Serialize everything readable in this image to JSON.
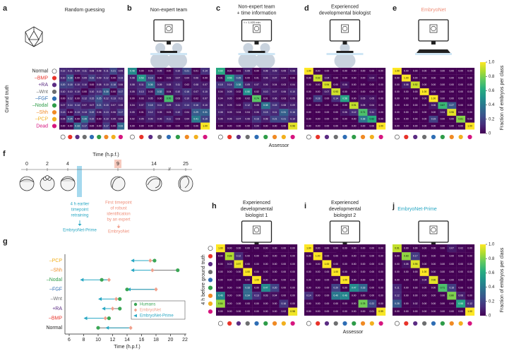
{
  "class_labels": [
    "Normal",
    "–BMP",
    "+RA",
    "–Wnt",
    "–FGF",
    "–Nodal",
    "–Shh",
    "–PCP",
    "Dead"
  ],
  "class_colors": [
    "#ffffff",
    "#e8332a",
    "#5b2c83",
    "#6d6e70",
    "#2e6db4",
    "#2e9c48",
    "#f08a24",
    "#f2b01e",
    "#d6157f"
  ],
  "top": {
    "y_label": "Ground truth",
    "x_label": "Assessor",
    "colorbar_label": "Fraction of embryos per class",
    "colorbar_ticks": [
      0,
      0.2,
      0.4,
      0.6,
      0.8,
      {
        "value": 1,
        "label": "1.0"
      }
    ],
    "panels": [
      {
        "letter": "a",
        "title": [
          "Random guessing"
        ],
        "matrix": [
          [
            "0.12",
            "0.11",
            "0.09",
            "0.11",
            "0.08",
            "0.08",
            "0.11",
            "0.21",
            "0.09"
          ],
          [
            "0.10",
            "0.28",
            "0.00",
            "0.09",
            "0.19",
            "0.09",
            "0.12",
            "0.00",
            "0.13"
          ],
          [
            "0.20",
            "0.18",
            "0.10",
            "0.10",
            "0.00",
            "0.08",
            "0.10",
            "0.18",
            "0.06"
          ],
          [
            "0.10",
            "0.10",
            "0.10",
            "0.00",
            "0.10",
            "0.13",
            "0.30",
            "0.00",
            "0.17"
          ],
          [
            "0.00",
            "0.12",
            "0.00",
            "0.12",
            "0.15",
            "0.25",
            "0.12",
            "0.13",
            "0.11"
          ],
          [
            "0.07",
            "0.14",
            "0.14",
            "0.07",
            "0.07",
            "0.21",
            "0.15",
            "0.07",
            "0.08"
          ],
          [
            "0.13",
            "0.00",
            "0.13",
            "0.13",
            "0.19",
            "0.06",
            "0.13",
            "0.06",
            "0.17"
          ],
          [
            "0.05",
            "0.25",
            "0.00",
            "0.35",
            "0.15",
            "0.00",
            "0.10",
            "0.05",
            "0.05"
          ],
          [
            "0.00",
            "0.00",
            "0.33",
            "0.17",
            "0.00",
            "0.00",
            "0.17",
            "0.00",
            "0.33"
          ]
        ]
      },
      {
        "letter": "b",
        "title": [
          "Non-expert team"
        ],
        "matrix": [
          [
            "0.48",
            "0.00",
            "0.01",
            "0.05",
            "0.00",
            "0.10",
            "0.21",
            "0.01",
            "0.14"
          ],
          [
            "0.08",
            "0.53",
            "0.19",
            "0.00",
            "0.03",
            "0.07",
            "0.04",
            "0.06",
            "0.00"
          ],
          [
            "0.08",
            "0.11",
            "0.36",
            "0.09",
            "0.08",
            "0.11",
            "0.02",
            "0.08",
            "0.07"
          ],
          [
            "0.05",
            "0.13",
            "0.03",
            "0.32",
            "0.04",
            "0.10",
            "0.16",
            "0.07",
            "0.10"
          ],
          [
            "0.00",
            "0.03",
            "0.05",
            "0.00",
            "0.70",
            "0.03",
            "0.10",
            "0.02",
            "0.07"
          ],
          [
            "0.04",
            "0.07",
            "0.18",
            "0.11",
            "0.09",
            "0.11",
            "0.14",
            "0.16",
            "0.10"
          ],
          [
            "0.05",
            "0.01",
            "0.12",
            "0.05",
            "0.03",
            "0.10",
            "0.04",
            "0.29",
            "0.31"
          ],
          [
            "0.02",
            "0.05",
            "0.09",
            "0.06",
            "0.11",
            "0.03",
            "0.04",
            "0.41",
            "0.19"
          ],
          [
            "0.00",
            "0.00",
            "0.00",
            "0.00",
            "0.00",
            "0.00",
            "0.00",
            "0.00",
            "1.00"
          ]
        ]
      },
      {
        "letter": "c",
        "title": [
          "Non-expert team",
          "+ time information"
        ],
        "screen_text": "t = 1,420 min",
        "matrix": [
          [
            "0.60",
            "0.00",
            "0.01",
            "0.09",
            "0.00",
            "0.08",
            "0.09",
            "0.05",
            "0.08"
          ],
          [
            "0.01",
            "0.56",
            "0.25",
            "0.00",
            "0.01",
            "0.06",
            "0.07",
            "0.04",
            "0.00"
          ],
          [
            "0.15",
            "0.14",
            "0.38",
            "0.09",
            "0.07",
            "0.06",
            "0.04",
            "0.03",
            "0.04"
          ],
          [
            "0.04",
            "0.09",
            "0.02",
            "0.50",
            "0.02",
            "0.10",
            "0.07",
            "0.06",
            "0.10"
          ],
          [
            "0.04",
            "0.05",
            "0.00",
            "0.02",
            "0.74",
            "0.01",
            "0.06",
            "0.03",
            "0.05"
          ],
          [
            "0.06",
            "0.05",
            "0.02",
            "0.12",
            "0.05",
            "0.38",
            "0.15",
            "0.08",
            "0.09"
          ],
          [
            "0.08",
            "0.05",
            "0.04",
            "0.04",
            "0.06",
            "0.15",
            "0.11",
            "0.31",
            "0.16"
          ],
          [
            "0.05",
            "0.06",
            "0.07",
            "0.06",
            "0.16",
            "0.08",
            "0.21",
            "0.21",
            "0.10"
          ],
          [
            "0.00",
            "0.00",
            "0.00",
            "0.00",
            "0.04",
            "0.00",
            "0.00",
            "0.00",
            "0.96"
          ]
        ]
      },
      {
        "letter": "d",
        "title": [
          "Experienced",
          "developmental biologist"
        ],
        "matrix": [
          [
            "1.00",
            "0.00",
            "0.00",
            "0.00",
            "0.00",
            "0.00",
            "0.00",
            "0.00",
            "0.00"
          ],
          [
            "0.00",
            "0.92",
            "0.04",
            "0.00",
            "0.00",
            "0.00",
            "0.00",
            "0.04",
            "0.00"
          ],
          [
            "0.00",
            "0.00",
            "0.94",
            "0.00",
            "0.06",
            "0.00",
            "0.00",
            "0.00",
            "0.00"
          ],
          [
            "0.00",
            "0.00",
            "0.07",
            "0.93",
            "0.00",
            "0.00",
            "0.00",
            "0.00",
            "0.00"
          ],
          [
            "0.00",
            "0.18",
            "0.00",
            "0.14",
            "0.58",
            "0.00",
            "0.05",
            "0.05",
            "0.00"
          ],
          [
            "0.00",
            "0.00",
            "0.00",
            "0.00",
            "0.00",
            "0.91",
            "0.05",
            "0.04",
            "0.00"
          ],
          [
            "0.00",
            "0.00",
            "0.00",
            "0.00",
            "0.06",
            "0.12",
            "0.71",
            "0.11",
            "0.00"
          ],
          [
            "0.00",
            "0.00",
            "0.00",
            "0.00",
            "0.00",
            "0.00",
            "0.38",
            "0.62",
            "0.00"
          ],
          [
            "0.00",
            "0.00",
            "0.00",
            "0.00",
            "0.00",
            "0.00",
            "0.00",
            "0.00",
            "1.00"
          ]
        ]
      },
      {
        "letter": "e",
        "title": [
          "EmbryoNet"
        ],
        "title_color": "#ef8f7a",
        "matrix": [
          [
            "1.00",
            "0.00",
            "0.00",
            "0.00",
            "0.00",
            "0.00",
            "0.00",
            "0.00",
            "0.00"
          ],
          [
            "0.00",
            "1.00",
            "0.00",
            "0.00",
            "0.00",
            "0.00",
            "0.00",
            "0.00",
            "0.00"
          ],
          [
            "0.00",
            "0.08",
            "0.92",
            "0.00",
            "0.00",
            "0.00",
            "0.00",
            "0.00",
            "0.00"
          ],
          [
            "0.00",
            "0.00",
            "0.00",
            "1.00",
            "0.00",
            "0.00",
            "0.00",
            "0.00",
            "0.00"
          ],
          [
            "0.00",
            "0.00",
            "0.00",
            "0.00",
            "1.00",
            "0.00",
            "0.00",
            "0.00",
            "0.00"
          ],
          [
            "0.00",
            "0.00",
            "0.00",
            "0.00",
            "0.06",
            "0.67",
            "0.27",
            "0.00",
            "0.00"
          ],
          [
            "0.00",
            "0.00",
            "0.00",
            "0.00",
            "0.00",
            "0.04",
            "0.96",
            "0.00",
            "0.00"
          ],
          [
            "0.00",
            "0.00",
            "0.00",
            "0.00",
            "0.19",
            "0.00",
            "0.00",
            "0.81",
            "0.00"
          ],
          [
            "0.00",
            "0.00",
            "0.00",
            "0.00",
            "0.00",
            "0.00",
            "0.00",
            "0.00",
            "1.00"
          ]
        ]
      }
    ]
  },
  "timeline": {
    "letter": "f",
    "axis_label": "Time (h.p.f.)",
    "ticks": [
      0,
      2,
      4,
      9,
      14,
      25
    ],
    "blue_note": [
      "4 h earlier",
      "timepoint",
      "retraining"
    ],
    "blue_model": "EmbryoNet-Prime",
    "blue_color": "#2aa8c4",
    "salmon_note": [
      "First timepoint",
      "of robust",
      "identification",
      "by an expert"
    ],
    "salmon_model": "EmbryoNet",
    "salmon_color": "#ef8f7a"
  },
  "dumbbell": {
    "letter": "g",
    "categories": [
      "–PCP",
      "–Shh",
      "–Nodal",
      "–FGF",
      "–Wnt",
      "+RA",
      "–BMP",
      "Normal"
    ],
    "category_colors": [
      "#f2b01e",
      "#f08a24",
      "#2e9c48",
      "#2e6db4",
      "#6d6e70",
      "#5b2c83",
      "#e8332a",
      "#222222"
    ],
    "series": [
      {
        "name": "Humans",
        "color": "#3aa655",
        "values": [
          17.8,
          21,
          10.5,
          14,
          13,
          13,
          11.5,
          10
        ]
      },
      {
        "name": "EmbryoNet",
        "color": "#f0a08c",
        "values": [
          17.2,
          17.5,
          11.5,
          18,
          12.5,
          12,
          11,
          14.5
        ]
      },
      {
        "name": "EmbryoNet-Prime",
        "color": "#2aa8c4",
        "values": [
          14.5,
          14.5,
          7.5,
          14,
          10,
          10.5,
          8,
          11
        ]
      }
    ],
    "xlim": [
      6,
      22
    ],
    "xticks": [
      6,
      8,
      10,
      12,
      14,
      16,
      18,
      20,
      22
    ],
    "x_label": "Time (h.p.f.)",
    "legend": "lower right"
  },
  "bottom": {
    "y_label": "4 h before ground truth",
    "x_label": "Assessor",
    "colorbar_label": "Fraction of embryos per class",
    "colorbar_ticks": [
      0,
      0.2,
      0.4,
      0.6,
      0.8,
      {
        "value": 1,
        "label": "1.0"
      }
    ],
    "panels": [
      {
        "letter": "h",
        "title": [
          "Experienced",
          "developmental",
          "biologist 1"
        ],
        "matrix": [
          [
            "1.00",
            "0.00",
            "0.00",
            "0.00",
            "0.00",
            "0.00",
            "0.00",
            "0.00",
            "0.00"
          ],
          [
            "0.00",
            "0.88",
            "0.12",
            "0.00",
            "0.00",
            "0.00",
            "0.00",
            "0.00",
            "0.00"
          ],
          [
            "0.00",
            "0.03",
            "0.97",
            "0.00",
            "0.00",
            "0.00",
            "0.00",
            "0.00",
            "0.00"
          ],
          [
            "0.00",
            "0.00",
            "0.00",
            "1.00",
            "0.00",
            "0.00",
            "0.00",
            "0.00",
            "0.00"
          ],
          [
            "0.00",
            "0.00",
            "0.00",
            "0.00",
            "1.00",
            "0.00",
            "0.00",
            "0.00",
            "0.00"
          ],
          [
            "0.00",
            "0.00",
            "0.00",
            "0.33",
            "0.00",
            "0.47",
            "0.20",
            "0.00",
            "0.00"
          ],
          [
            "0.46",
            "0.00",
            "0.00",
            "0.34",
            "0.13",
            "0.03",
            "0.04",
            "0.00",
            "0.00"
          ],
          [
            "0.84",
            "0.00",
            "0.00",
            "0.00",
            "0.00",
            "0.00",
            "0.00",
            "0.16",
            "0.00"
          ],
          [
            "0.00",
            "0.00",
            "0.00",
            "0.00",
            "0.00",
            "0.00",
            "0.00",
            "0.02",
            "0.98"
          ]
        ]
      },
      {
        "letter": "i",
        "title": [
          "Experienced",
          "developmental",
          "biologist 2"
        ],
        "matrix": [
          [
            "1.00",
            "0.00",
            "0.00",
            "0.00",
            "0.00",
            "0.00",
            "0.00",
            "0.00",
            "0.00"
          ],
          [
            "0.00",
            "1.00",
            "0.00",
            "0.00",
            "0.00",
            "0.00",
            "0.00",
            "0.00",
            "0.00"
          ],
          [
            "0.00",
            "0.00",
            "1.00",
            "0.00",
            "0.00",
            "0.00",
            "0.00",
            "0.00",
            "0.00"
          ],
          [
            "0.00",
            "0.00",
            "0.00",
            "1.00",
            "0.00",
            "0.00",
            "0.00",
            "0.00",
            "0.00"
          ],
          [
            "0.00",
            "0.00",
            "0.00",
            "0.00",
            "1.00",
            "0.00",
            "0.00",
            "0.00",
            "0.00"
          ],
          [
            "0.00",
            "0.00",
            "0.00",
            "0.20",
            "0.00",
            "0.47",
            "0.33",
            "0.00",
            "0.00"
          ],
          [
            "0.14",
            "0.00",
            "0.00",
            "0.40",
            "0.46",
            "0.00",
            "0.00",
            "0.00",
            "0.00"
          ],
          [
            "0.00",
            "0.00",
            "0.00",
            "0.00",
            "0.00",
            "0.00",
            "0.78",
            "0.22",
            "0.00"
          ],
          [
            "0.00",
            "0.00",
            "0.00",
            "0.00",
            "0.00",
            "0.00",
            "0.00",
            "0.01",
            "0.99"
          ]
        ]
      },
      {
        "letter": "j",
        "title": [
          "EmbryoNet-Prime"
        ],
        "title_color": "#2aa8c4",
        "matrix": [
          [
            "0.91",
            "0.00",
            "0.00",
            "0.00",
            "0.00",
            "0.00",
            "0.07",
            "0.02",
            "0.00"
          ],
          [
            "0.00",
            "0.83",
            "0.17",
            "0.00",
            "0.00",
            "0.00",
            "0.00",
            "0.00",
            "0.00"
          ],
          [
            "0.00",
            "0.05",
            "0.95",
            "0.00",
            "0.00",
            "0.00",
            "0.00",
            "0.00",
            "0.00"
          ],
          [
            "0.00",
            "0.00",
            "0.00",
            "1.00",
            "0.00",
            "0.00",
            "0.00",
            "0.00",
            "0.00"
          ],
          [
            "0.00",
            "0.00",
            "0.00",
            "0.04",
            "0.96",
            "0.00",
            "0.00",
            "0.00",
            "0.00"
          ],
          [
            "0.11",
            "0.00",
            "0.00",
            "0.00",
            "0.00",
            "0.71",
            "0.18",
            "0.00",
            "0.00"
          ],
          [
            "0.12",
            "0.00",
            "0.00",
            "0.00",
            "0.00",
            "0.00",
            "0.80",
            "0.08",
            "0.00"
          ],
          [
            "0.28",
            "0.00",
            "0.02",
            "0.00",
            "0.00",
            "0.00",
            "0.00",
            "0.58",
            "0.12"
          ],
          [
            "0.00",
            "0.00",
            "0.00",
            "0.00",
            "0.00",
            "0.00",
            "0.00",
            "0.00",
            "1.00"
          ]
        ]
      }
    ]
  }
}
